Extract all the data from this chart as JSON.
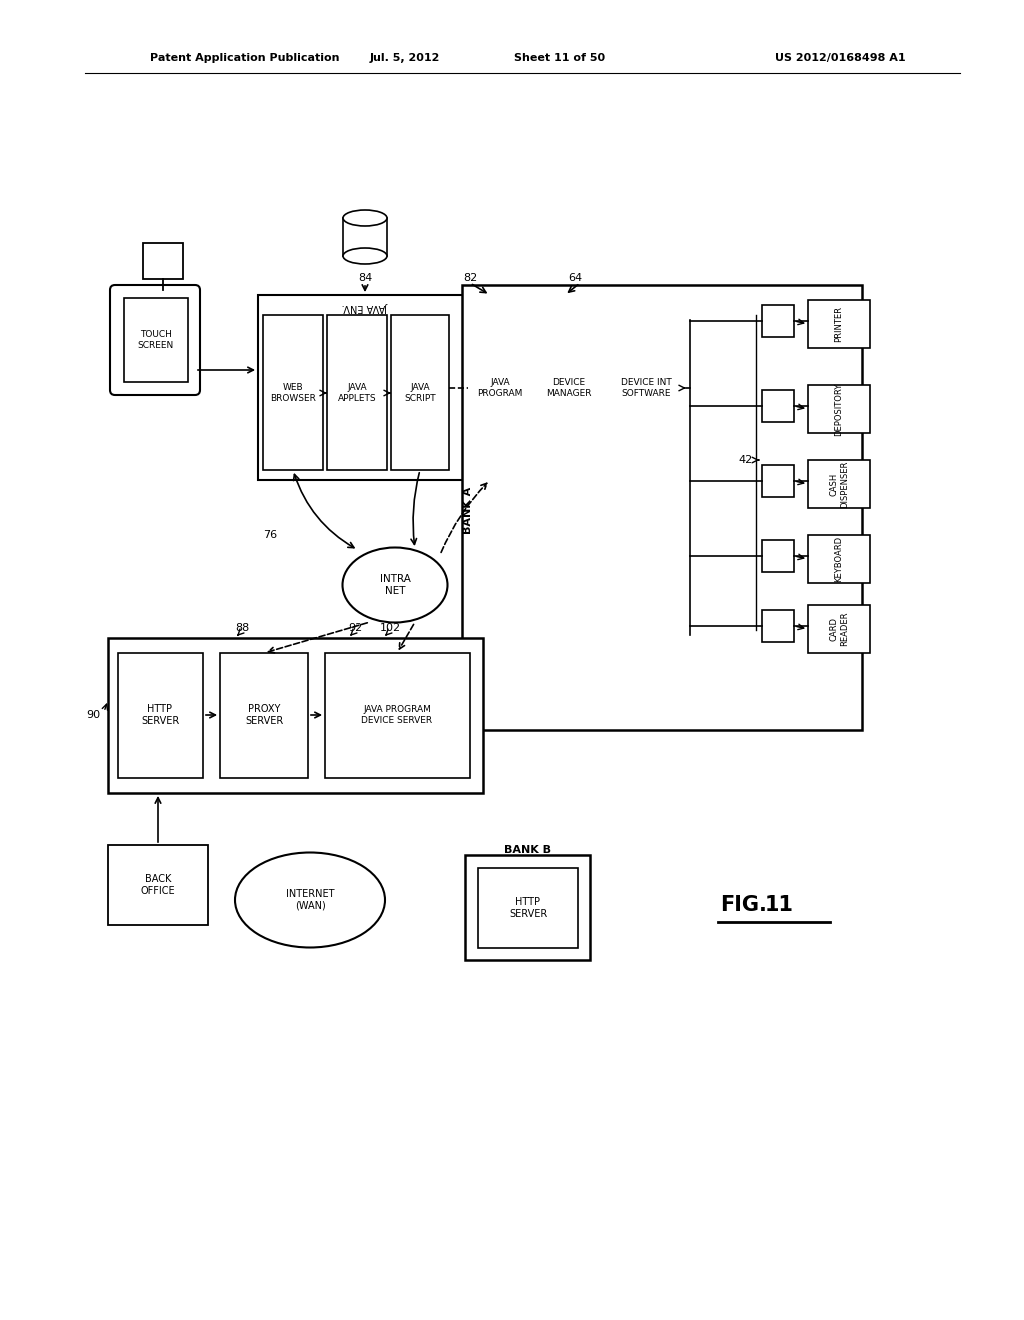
{
  "header_left": "Patent Application Publication",
  "header_mid": "Jul. 5, 2012",
  "header_sheet": "Sheet 11 of 50",
  "header_right": "US 2012/0168498 A1",
  "bg": "#ffffff"
}
